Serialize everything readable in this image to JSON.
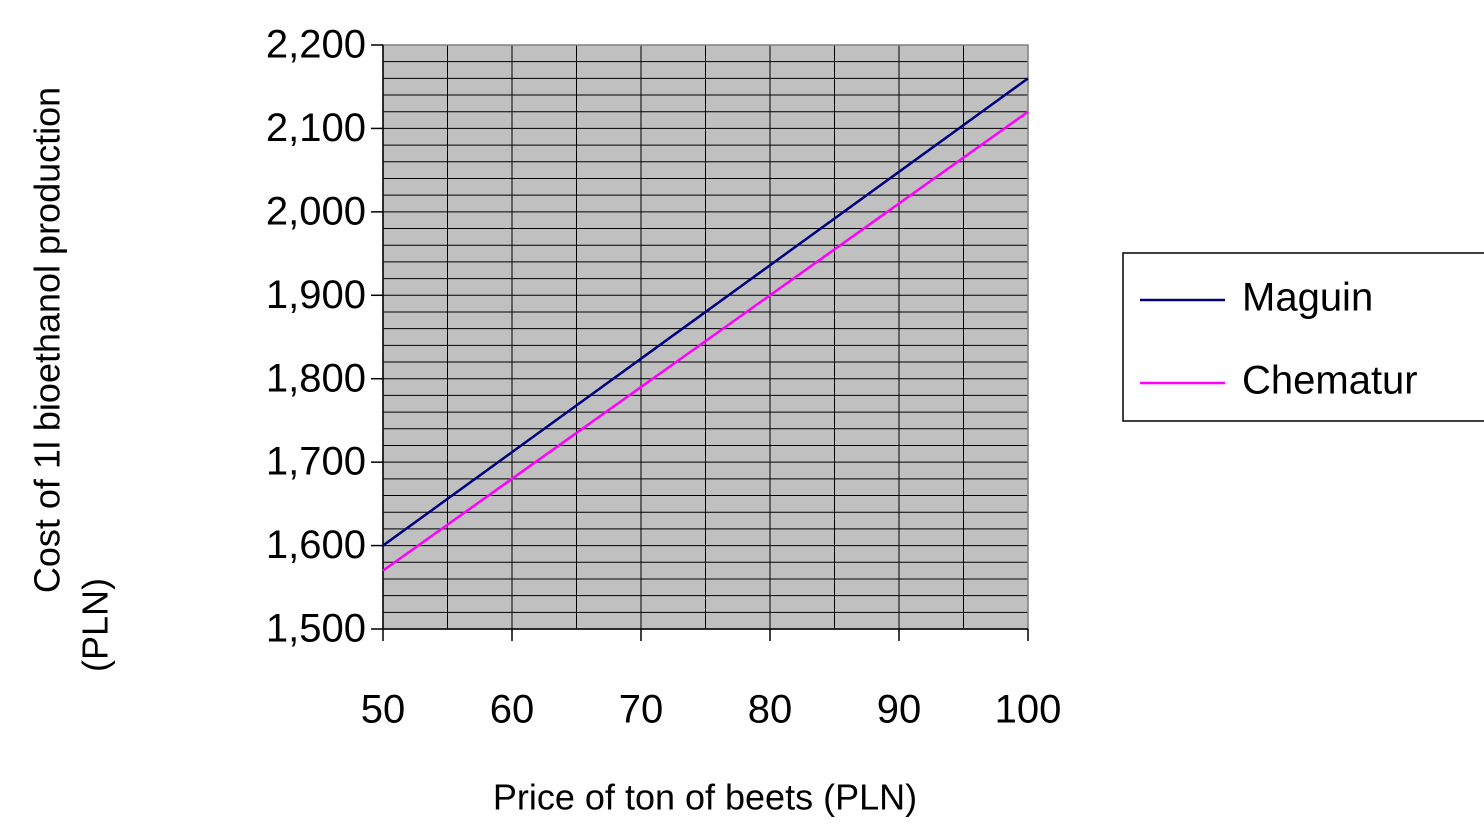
{
  "chart_data": {
    "type": "line",
    "x_label": "Price of ton of beets (PLN)",
    "y_label": [
      "Cost of 1l bioethanol production",
      "(PLN)"
    ],
    "x": [
      50,
      60,
      70,
      80,
      90,
      100
    ],
    "series": [
      {
        "name": "Maguin",
        "color": "#000080",
        "values": [
          1.6,
          1.712,
          1.824,
          1.936,
          2.048,
          2.16
        ]
      },
      {
        "name": "Chematur",
        "color": "#ff00ff",
        "values": [
          1.57,
          1.68,
          1.79,
          1.9,
          2.01,
          2.12
        ]
      }
    ],
    "xlim": [
      50,
      100
    ],
    "xticks": [
      50,
      60,
      70,
      80,
      90,
      100
    ],
    "ylim": [
      1.5,
      2.2
    ],
    "yticks": [
      {
        "value": 1.5,
        "label": "1,500"
      },
      {
        "value": 1.6,
        "label": "1,600"
      },
      {
        "value": 1.7,
        "label": "1,700"
      },
      {
        "value": 1.8,
        "label": "1,800"
      },
      {
        "value": 1.9,
        "label": "1,900"
      },
      {
        "value": 2.0,
        "label": "2,000"
      },
      {
        "value": 2.1,
        "label": "2,100"
      },
      {
        "value": 2.2,
        "label": "2,200"
      }
    ],
    "xgrid": [
      50,
      55,
      60,
      65,
      70,
      75,
      80,
      85,
      90,
      95,
      100
    ],
    "ygrid": [
      1.5,
      1.52,
      1.54,
      1.56,
      1.58,
      1.6,
      1.62,
      1.64,
      1.66,
      1.68,
      1.7,
      1.72,
      1.74,
      1.76,
      1.78,
      1.8,
      1.82,
      1.84,
      1.86,
      1.88,
      1.9,
      1.92,
      1.94,
      1.96,
      1.98,
      2.0,
      2.02,
      2.04,
      2.06,
      2.08,
      2.1,
      2.12,
      2.14,
      2.16,
      2.18,
      2.2
    ],
    "plot_background": "#c0c0c0",
    "legend": "right"
  }
}
